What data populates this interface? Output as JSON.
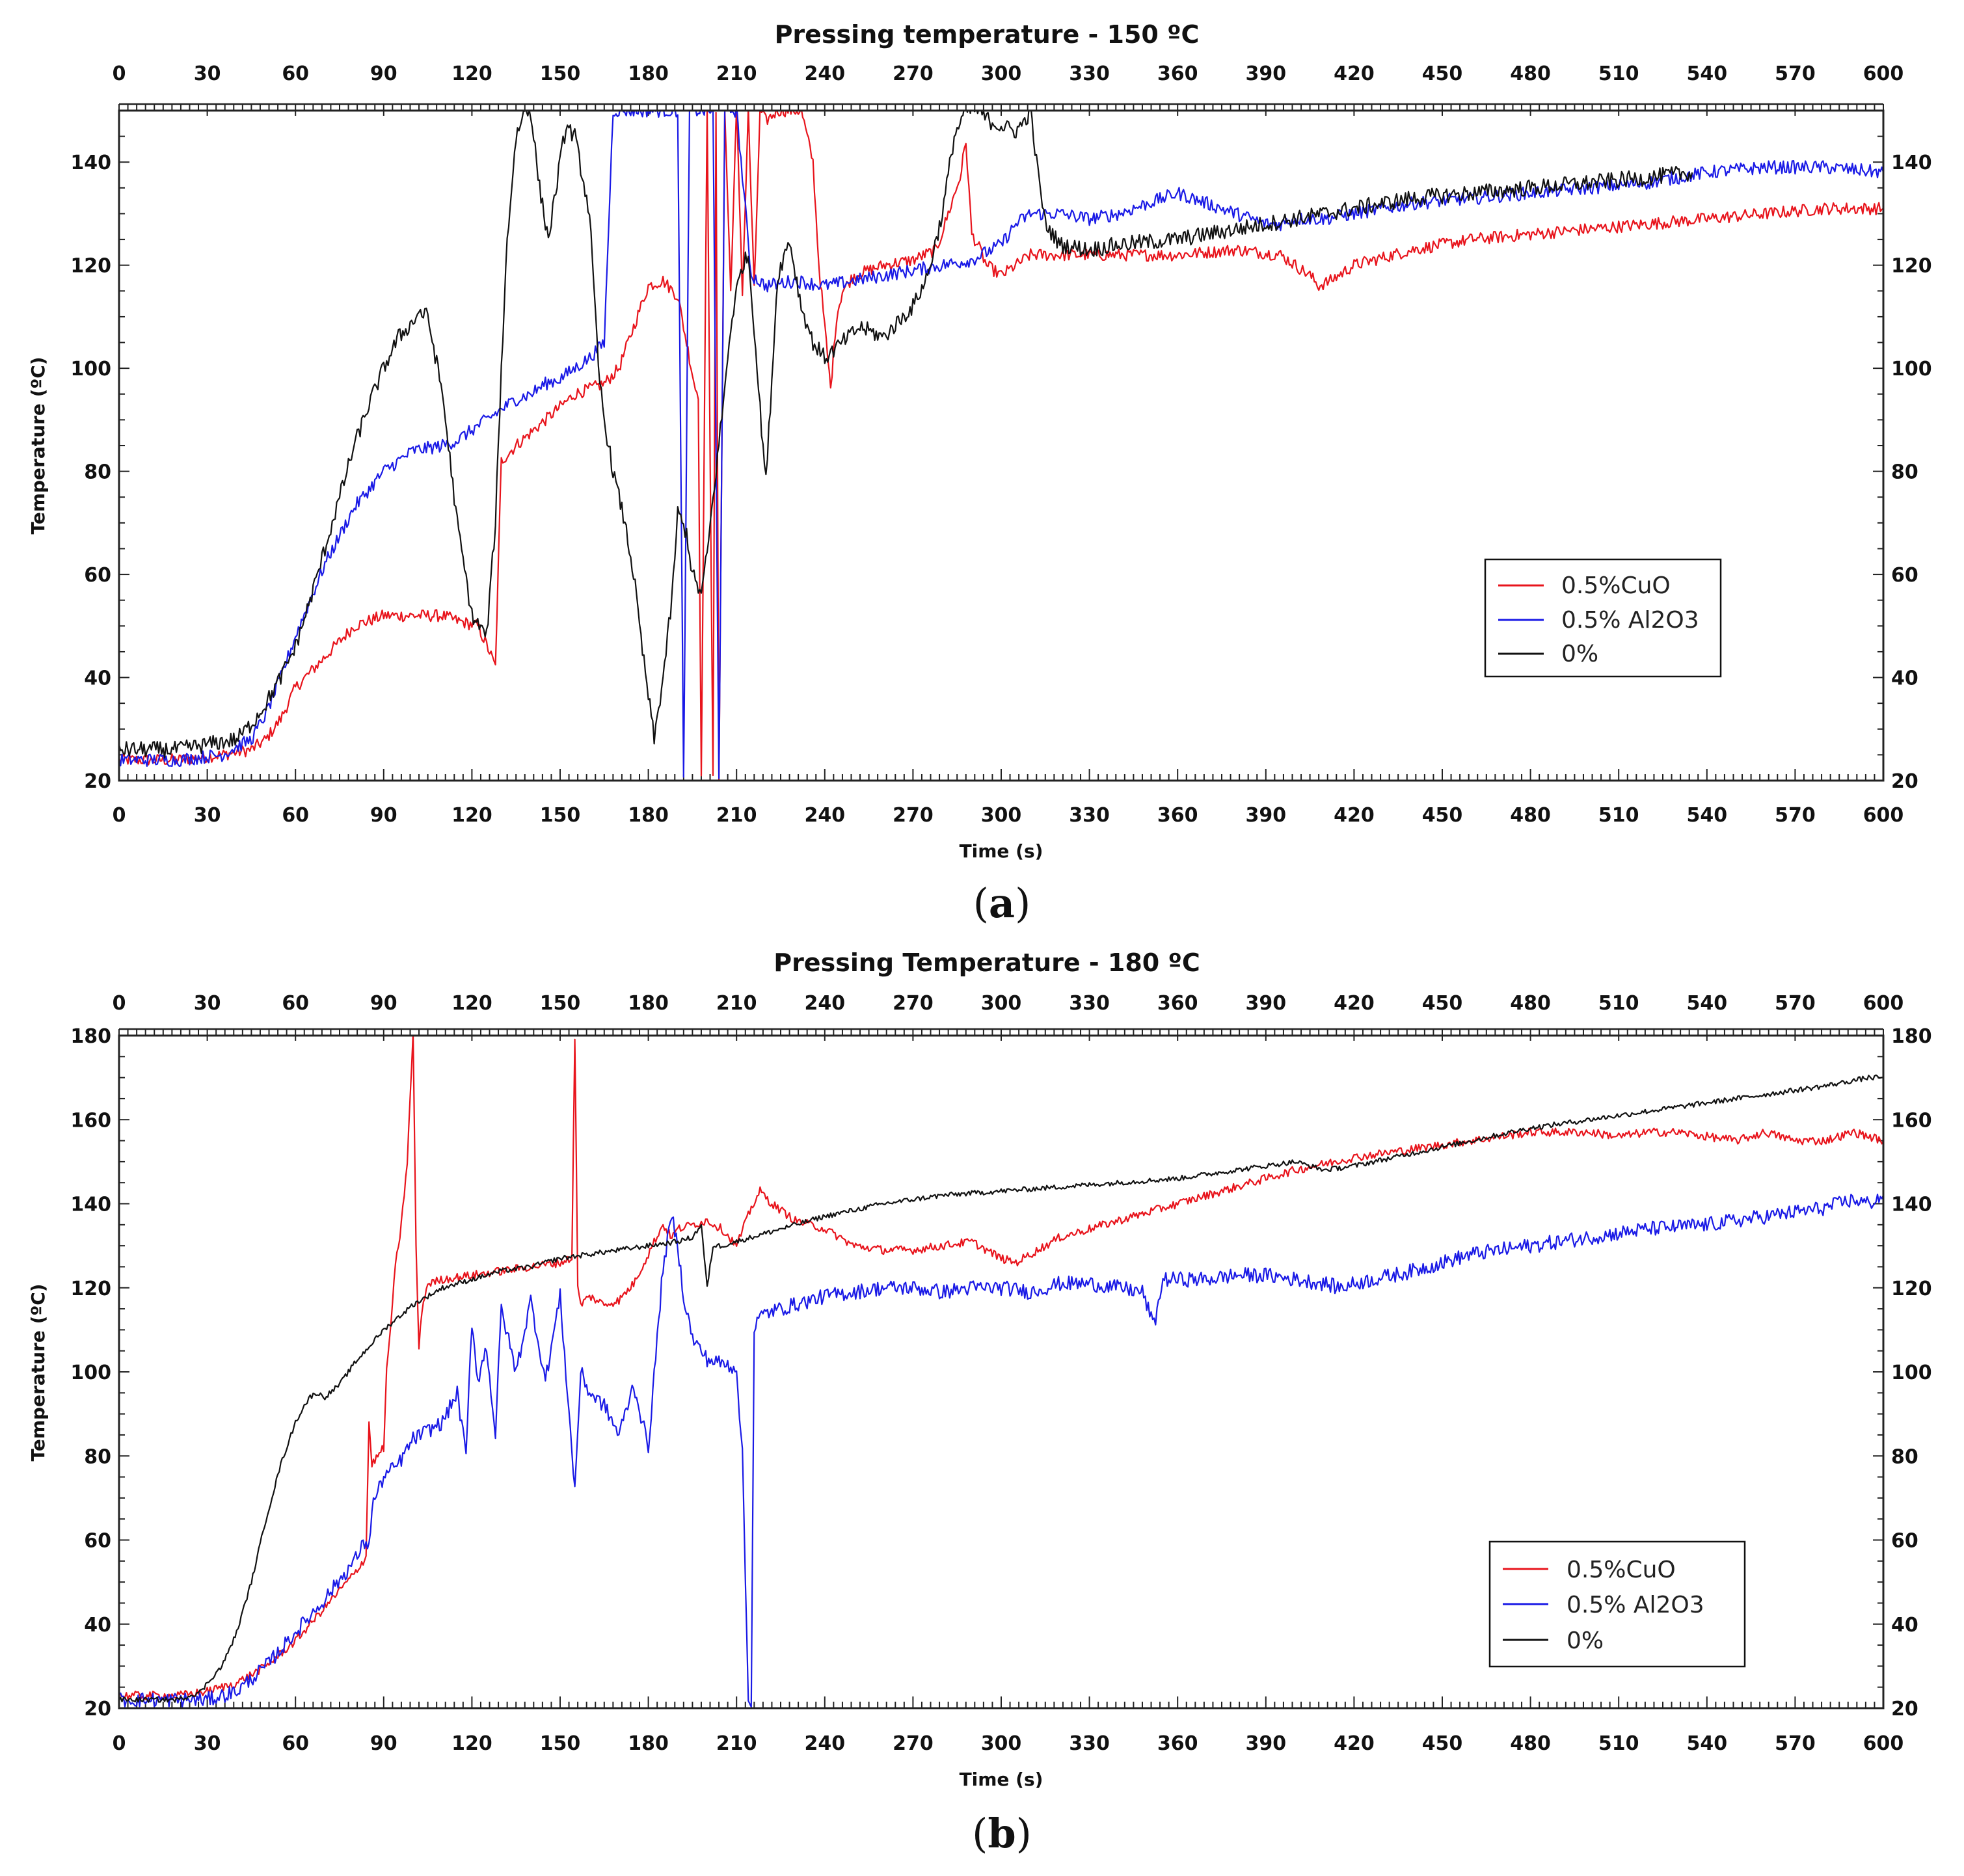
{
  "chart_data": [
    {
      "type": "line",
      "title": "Pressing temperature - 150 ºC",
      "xlabel": "Time (s)",
      "ylabel": "Temperature (ºC)",
      "caption_letter": "a",
      "xlim": [
        0,
        600
      ],
      "ylim": [
        20,
        150
      ],
      "xticks": [
        0,
        30,
        60,
        90,
        120,
        150,
        180,
        210,
        240,
        270,
        300,
        330,
        360,
        390,
        420,
        450,
        480,
        510,
        540,
        570,
        600
      ],
      "yticks": [
        20,
        40,
        60,
        80,
        100,
        120,
        140
      ],
      "legend_position": "center-right",
      "legend": [
        "0.5%CuO",
        "0.5% Al2O3",
        "0%"
      ],
      "series": [
        {
          "name": "0.5%CuO",
          "color": "#e8141c",
          "noise": 1.2,
          "x": [
            0,
            20,
            35,
            45,
            50,
            55,
            60,
            70,
            80,
            90,
            100,
            110,
            115,
            122,
            126,
            128,
            130,
            135,
            145,
            155,
            165,
            170,
            175,
            180,
            185,
            190,
            193,
            196,
            197,
            198,
            200,
            202,
            203,
            204,
            206,
            208,
            210,
            212,
            214,
            216,
            218,
            220,
            224,
            228,
            232,
            236,
            238,
            242,
            244,
            246,
            250,
            260,
            270,
            278,
            282,
            286,
            288,
            290,
            292,
            295,
            300,
            305,
            310,
            320,
            330,
            340,
            360,
            380,
            395,
            400,
            405,
            408,
            412,
            420,
            440,
            460,
            480,
            500,
            520,
            540,
            560,
            580,
            600
          ],
          "y": [
            24,
            24,
            25,
            26,
            28,
            32,
            38,
            44,
            50,
            52,
            52,
            52,
            51,
            50,
            45,
            42,
            82,
            85,
            90,
            95,
            97,
            100,
            108,
            116,
            117,
            114,
            105,
            96,
            95,
            20,
            150,
            20,
            150,
            20,
            150,
            115,
            150,
            115,
            150,
            115,
            150,
            148,
            150,
            150,
            150,
            140,
            120,
            96,
            110,
            115,
            118,
            120,
            121,
            123,
            130,
            137,
            144,
            126,
            124,
            120,
            118,
            120,
            122,
            122,
            122,
            122,
            122,
            123,
            122,
            120,
            118,
            116,
            117,
            120,
            123,
            125,
            126,
            127,
            128,
            129,
            130,
            131,
            131
          ]
        },
        {
          "name": "0.5% Al2O3",
          "color": "#1a1ae6",
          "noise": 1.3,
          "x": [
            0,
            20,
            35,
            45,
            50,
            55,
            60,
            70,
            80,
            90,
            100,
            110,
            115,
            120,
            125,
            130,
            135,
            140,
            145,
            150,
            155,
            160,
            165,
            168,
            170,
            172,
            176,
            180,
            185,
            190,
            192,
            194,
            196,
            198,
            200,
            202,
            204,
            206,
            208,
            210,
            215,
            220,
            230,
            240,
            250,
            260,
            270,
            280,
            290,
            300,
            305,
            310,
            320,
            330,
            340,
            350,
            360,
            365,
            370,
            380,
            390,
            395,
            400,
            410,
            420,
            440,
            460,
            480,
            500,
            520,
            540,
            560,
            580,
            600
          ],
          "y": [
            24,
            24,
            25,
            28,
            33,
            40,
            48,
            62,
            73,
            80,
            84,
            85,
            86,
            88,
            90,
            92,
            94,
            95,
            97,
            98,
            100,
            102,
            105,
            150,
            150,
            150,
            150,
            150,
            150,
            150,
            20,
            150,
            150,
            150,
            150,
            150,
            20,
            150,
            150,
            150,
            118,
            116,
            117,
            116,
            117,
            118,
            119,
            120,
            121,
            124,
            128,
            130,
            130,
            129,
            130,
            132,
            134,
            133,
            132,
            130,
            128,
            128,
            129,
            129,
            130,
            132,
            133,
            134,
            135,
            136,
            138,
            139,
            139,
            138
          ]
        },
        {
          "name": "0%",
          "color": "#111111",
          "noise": 1.6,
          "x": [
            0,
            20,
            30,
            40,
            45,
            50,
            55,
            60,
            65,
            70,
            75,
            80,
            85,
            90,
            95,
            100,
            102,
            105,
            110,
            115,
            120,
            125,
            128,
            130,
            132,
            135,
            138,
            140,
            143,
            146,
            150,
            152,
            155,
            160,
            163,
            165,
            168,
            170,
            172,
            175,
            178,
            182,
            185,
            188,
            190,
            193,
            195,
            198,
            200,
            203,
            206,
            208,
            210,
            212,
            214,
            216,
            218,
            220,
            224,
            228,
            232,
            236,
            240,
            244,
            248,
            252,
            256,
            260,
            265,
            270,
            275,
            280,
            284,
            288,
            292,
            296,
            300,
            305,
            308,
            310,
            312,
            315,
            320,
            330,
            340,
            360,
            380,
            400,
            420,
            440,
            460,
            480,
            500,
            520,
            535
          ],
          "y": [
            26,
            26,
            27,
            28,
            31,
            35,
            40,
            46,
            55,
            65,
            75,
            85,
            93,
            100,
            106,
            109,
            111,
            110,
            95,
            70,
            52,
            48,
            70,
            100,
            125,
            145,
            150,
            150,
            135,
            125,
            140,
            147,
            145,
            130,
            100,
            90,
            80,
            75,
            70,
            60,
            45,
            28,
            40,
            55,
            72,
            68,
            60,
            56,
            64,
            80,
            96,
            108,
            115,
            120,
            122,
            108,
            92,
            78,
            118,
            125,
            112,
            105,
            102,
            104,
            106,
            108,
            107,
            106,
            109,
            112,
            118,
            130,
            145,
            150,
            150,
            148,
            147,
            146,
            148,
            150,
            140,
            128,
            124,
            123,
            124,
            125,
            127,
            129,
            131,
            133,
            134,
            135,
            136,
            137,
            138
          ]
        }
      ]
    },
    {
      "type": "line",
      "title": "Pressing Temperature - 180 ºC",
      "xlabel": "Time (s)",
      "ylabel": "Temperature (ºC)",
      "caption_letter": "b",
      "xlim": [
        0,
        600
      ],
      "ylim": [
        20,
        180
      ],
      "xticks": [
        0,
        30,
        60,
        90,
        120,
        150,
        180,
        210,
        240,
        270,
        300,
        330,
        360,
        390,
        420,
        450,
        480,
        510,
        540,
        570,
        600
      ],
      "yticks": [
        20,
        40,
        60,
        80,
        100,
        120,
        140,
        160,
        180
      ],
      "legend_position": "bottom-right",
      "legend": [
        "0.5%CuO",
        "0.5% Al2O3",
        "0%"
      ],
      "series": [
        {
          "name": "0.5%CuO",
          "color": "#e8141c",
          "noise": 1.0,
          "x": [
            0,
            20,
            30,
            40,
            50,
            60,
            70,
            80,
            84,
            85,
            86,
            88,
            90,
            91,
            92,
            94,
            96,
            98,
            100,
            101,
            102,
            103,
            105,
            110,
            120,
            130,
            140,
            150,
            154,
            155,
            156,
            157,
            160,
            165,
            170,
            175,
            180,
            182,
            185,
            188,
            190,
            195,
            200,
            205,
            210,
            215,
            218,
            222,
            226,
            230,
            240,
            250,
            260,
            270,
            280,
            290,
            295,
            300,
            305,
            310,
            320,
            340,
            360,
            380,
            400,
            420,
            440,
            460,
            480,
            490,
            500,
            510,
            520,
            530,
            540,
            550,
            560,
            570,
            580,
            585,
            590,
            595,
            600
          ],
          "y": [
            23,
            23,
            24,
            26,
            30,
            36,
            44,
            52,
            56,
            88,
            78,
            80,
            82,
            100,
            108,
            125,
            135,
            150,
            180,
            130,
            105,
            115,
            121,
            122,
            123,
            124,
            125,
            126,
            127,
            180,
            120,
            116,
            118,
            116,
            117,
            121,
            128,
            131,
            135,
            132,
            134,
            135,
            136,
            134,
            130,
            139,
            143,
            140,
            138,
            136,
            134,
            130,
            129,
            129,
            130,
            131,
            129,
            127,
            126,
            128,
            132,
            136,
            140,
            144,
            148,
            151,
            153,
            155,
            157,
            157,
            157,
            156,
            157,
            157,
            156,
            155,
            157,
            155,
            155,
            156,
            157,
            156,
            155
          ]
        },
        {
          "name": "0.5% Al2O3",
          "color": "#1a1ae6",
          "noise": 1.8,
          "x": [
            0,
            20,
            30,
            40,
            50,
            60,
            70,
            80,
            84,
            85,
            86,
            90,
            95,
            100,
            110,
            115,
            118,
            120,
            122,
            125,
            128,
            130,
            135,
            140,
            145,
            150,
            155,
            157,
            160,
            165,
            170,
            175,
            180,
            185,
            188,
            190,
            192,
            195,
            200,
            205,
            210,
            212,
            214,
            215,
            216,
            217,
            218,
            220,
            230,
            240,
            250,
            260,
            270,
            280,
            290,
            300,
            310,
            320,
            330,
            340,
            348,
            350,
            352,
            355,
            360,
            370,
            380,
            390,
            400,
            410,
            415,
            420,
            440,
            460,
            480,
            500,
            520,
            540,
            560,
            580,
            590,
            595,
            600
          ],
          "y": [
            22,
            22,
            22,
            24,
            30,
            38,
            46,
            55,
            60,
            58,
            68,
            75,
            78,
            84,
            88,
            95,
            80,
            112,
            98,
            106,
            85,
            115,
            100,
            117,
            98,
            118,
            72,
            100,
            95,
            92,
            85,
            97,
            82,
            125,
            137,
            130,
            118,
            108,
            103,
            102,
            101,
            80,
            22,
            22,
            110,
            112,
            113,
            114,
            116,
            118,
            119,
            120,
            120,
            119,
            120,
            120,
            119,
            121,
            121,
            120,
            119,
            115,
            111,
            122,
            122,
            122,
            123,
            123,
            122,
            121,
            120,
            121,
            124,
            128,
            130,
            132,
            134,
            135,
            137,
            139,
            141,
            140,
            142
          ]
        },
        {
          "name": "0%",
          "color": "#111111",
          "noise": 0.6,
          "x": [
            0,
            20,
            28,
            30,
            35,
            40,
            45,
            50,
            55,
            60,
            63,
            65,
            67,
            70,
            75,
            80,
            90,
            100,
            110,
            120,
            130,
            140,
            150,
            160,
            170,
            180,
            190,
            195,
            198,
            200,
            202,
            205,
            210,
            220,
            230,
            240,
            260,
            280,
            300,
            320,
            340,
            360,
            380,
            390,
            400,
            405,
            410,
            420,
            440,
            460,
            480,
            500,
            520,
            540,
            560,
            580,
            595,
            600
          ],
          "y": [
            22,
            22,
            24,
            26,
            30,
            38,
            50,
            65,
            78,
            88,
            92,
            94,
            95,
            94,
            97,
            102,
            110,
            116,
            120,
            122,
            124,
            125,
            127,
            128,
            129,
            130,
            131,
            132,
            135,
            120,
            130,
            130,
            131,
            133,
            135,
            137,
            140,
            142,
            143,
            144,
            145,
            146,
            148,
            149,
            150,
            149,
            148,
            149,
            152,
            155,
            158,
            160,
            162,
            164,
            166,
            168,
            170,
            170
          ]
        }
      ]
    }
  ]
}
